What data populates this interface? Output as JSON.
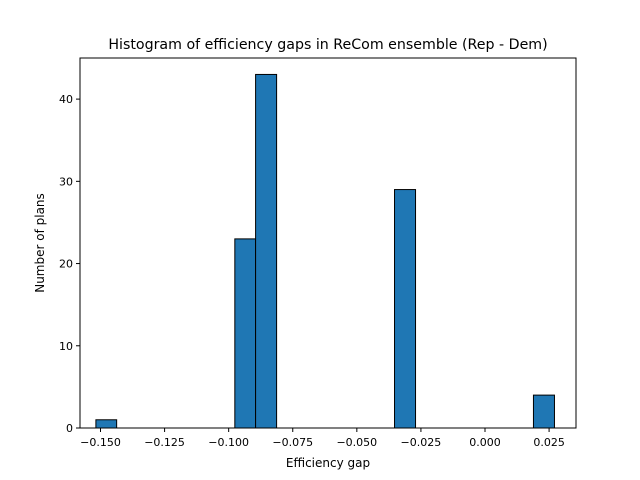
{
  "chart_data": {
    "type": "bar",
    "title": "Histogram of efficiency gaps in ReCom ensemble (Rep - Dem)",
    "xlabel": "Efficiency gap",
    "ylabel": "Number of plans",
    "xlim": [
      -0.158,
      0.0355
    ],
    "ylim": [
      0,
      45
    ],
    "xticks": [
      -0.15,
      -0.125,
      -0.1,
      -0.075,
      -0.05,
      -0.025,
      0.0,
      0.025
    ],
    "xtick_labels": [
      "−0.150",
      "−0.125",
      "−0.100",
      "−0.075",
      "−0.050",
      "−0.025",
      "0.000",
      "0.025"
    ],
    "yticks": [
      0,
      10,
      20,
      30,
      40
    ],
    "ytick_labels": [
      "0",
      "10",
      "20",
      "30",
      "40"
    ],
    "bins": [
      {
        "x0": -0.1518,
        "x1": -0.1437,
        "value": 1
      },
      {
        "x0": -0.0976,
        "x1": -0.0895,
        "value": 23
      },
      {
        "x0": -0.0895,
        "x1": -0.0813,
        "value": 43
      },
      {
        "x0": -0.0353,
        "x1": -0.0271,
        "value": 29
      },
      {
        "x0": 0.0189,
        "x1": 0.0271,
        "value": 4
      }
    ],
    "bar_color": "#1f77b4",
    "edge_color": "#000000",
    "grid": false
  }
}
